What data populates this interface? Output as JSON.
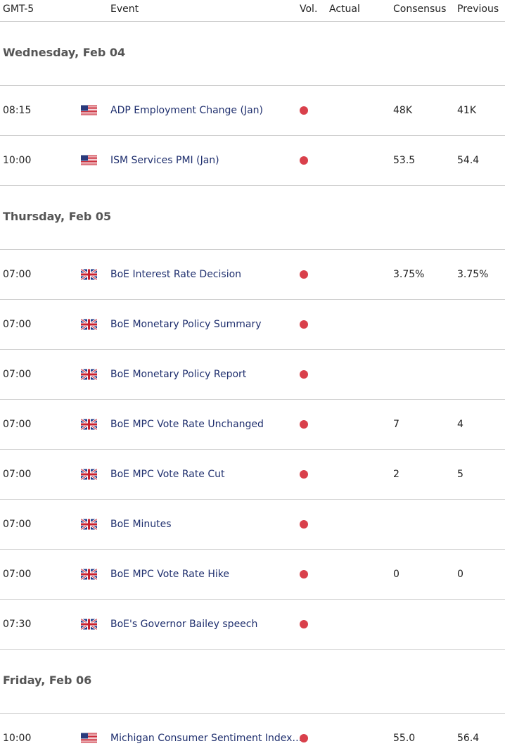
{
  "header": {
    "columns": [
      "GMT-5",
      "Event",
      "Vol.",
      "Actual",
      "Consensus",
      "Previous"
    ]
  },
  "days": [
    {
      "label": "Wednesday, Feb 04",
      "events": [
        {
          "time": "08:15",
          "flag": "us",
          "event": "ADP Employment Change (Jan)",
          "consensus": "48K",
          "previous": "41K"
        },
        {
          "time": "10:00",
          "flag": "us",
          "event": "ISM Services PMI (Jan)",
          "consensus": "53.5",
          "previous": "54.4"
        }
      ]
    },
    {
      "label": "Thursday, Feb 05",
      "events": [
        {
          "time": "07:00",
          "flag": "gb",
          "event": "BoE Interest Rate Decision",
          "consensus": "3.75%",
          "previous": "3.75%"
        },
        {
          "time": "07:00",
          "flag": "gb",
          "event": "BoE Monetary Policy Summary"
        },
        {
          "time": "07:00",
          "flag": "gb",
          "event": "BoE Monetary Policy Report"
        },
        {
          "time": "07:00",
          "flag": "gb",
          "event": "BoE MPC Vote Rate Unchanged",
          "consensus": "7",
          "previous": "4"
        },
        {
          "time": "07:00",
          "flag": "gb",
          "event": "BoE MPC Vote Rate Cut",
          "consensus": "2",
          "previous": "5"
        },
        {
          "time": "07:00",
          "flag": "gb",
          "event": "BoE Minutes"
        },
        {
          "time": "07:00",
          "flag": "gb",
          "event": "BoE MPC Vote Rate Hike",
          "consensus": "0",
          "previous": "0"
        },
        {
          "time": "07:30",
          "flag": "gb",
          "event": "BoE's Governor Bailey speech"
        }
      ]
    },
    {
      "label": "Friday, Feb 06",
      "events": [
        {
          "time": "10:00",
          "flag": "us",
          "event": "Michigan Consumer Sentiment Index…",
          "consensus": "55.0",
          "previous": "56.4"
        }
      ]
    }
  ]
}
